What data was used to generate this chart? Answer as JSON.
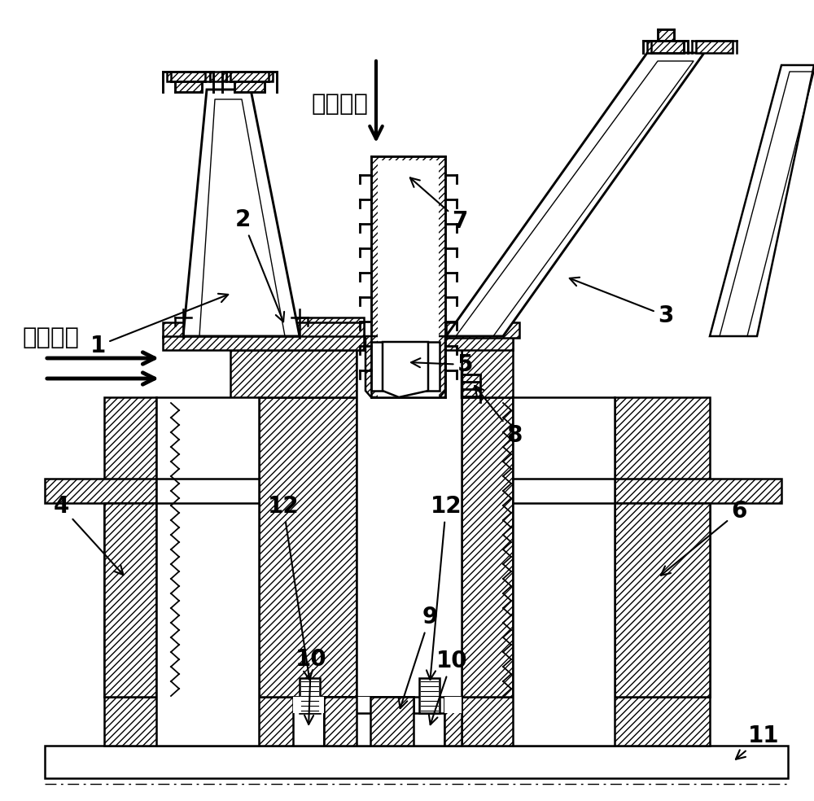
{
  "bg": "#ffffff",
  "lw": 1.8,
  "hatch": "////",
  "labels": [
    "1",
    "2",
    "3",
    "4",
    "5",
    "6",
    "7",
    "8",
    "9",
    "10",
    "11",
    "12"
  ],
  "chinese_cooling": "冷却气流",
  "chinese_main": "高温主流"
}
